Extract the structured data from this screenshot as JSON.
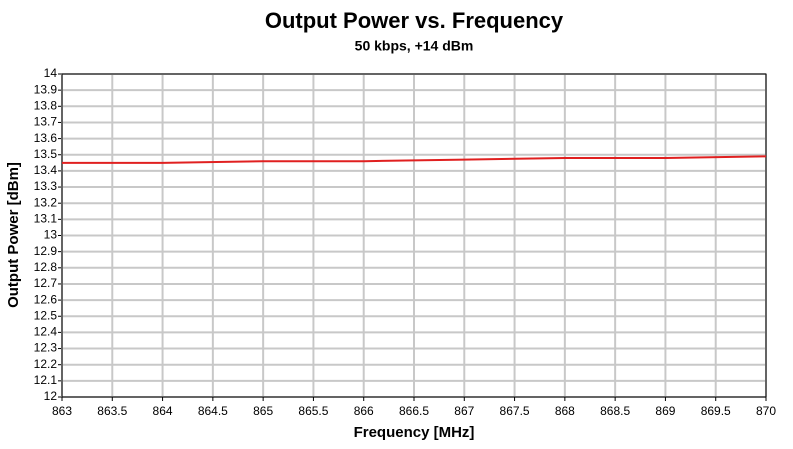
{
  "chart_data": {
    "type": "line",
    "title": "Output Power vs. Frequency",
    "subtitle": "50 kbps, +14 dBm",
    "x_label": "Frequency [MHz]",
    "y_label": "Output Power [dBm]",
    "x": [
      863,
      864,
      865,
      866,
      867,
      868,
      869,
      870
    ],
    "series": [
      {
        "name": "Output Power",
        "color": "#e02020",
        "values": [
          13.45,
          13.45,
          13.46,
          13.46,
          13.47,
          13.48,
          13.48,
          13.49
        ]
      }
    ],
    "xlim": [
      863,
      870
    ],
    "xticks": [
      863,
      863.5,
      864,
      864.5,
      865,
      865.5,
      866,
      866.5,
      867,
      867.5,
      868,
      868.5,
      869,
      869.5,
      870
    ],
    "ylim": [
      12,
      14
    ],
    "yticks": [
      12,
      12.1,
      12.2,
      12.3,
      12.4,
      12.5,
      12.6,
      12.7,
      12.8,
      12.9,
      13,
      13.1,
      13.2,
      13.3,
      13.4,
      13.5,
      13.6,
      13.7,
      13.8,
      13.9,
      14
    ],
    "grid": true
  }
}
